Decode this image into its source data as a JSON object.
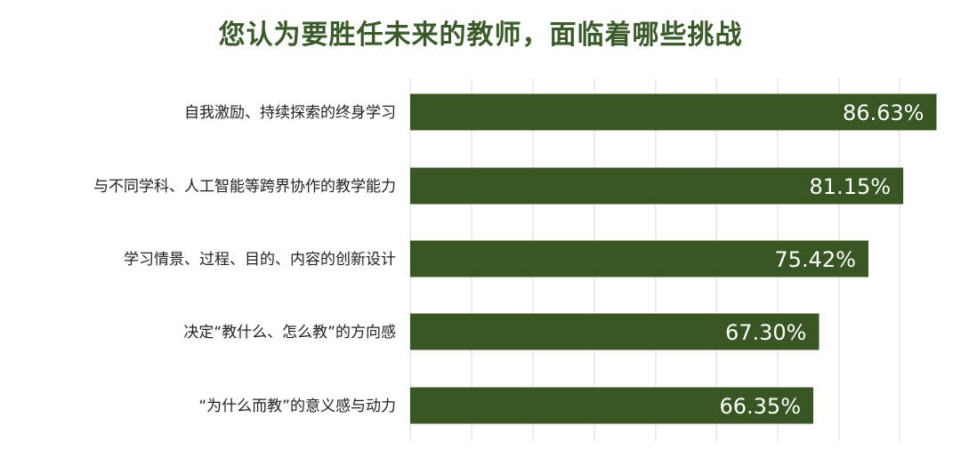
{
  "chart_data": {
    "type": "bar",
    "orientation": "horizontal",
    "title": "您认为要胜任未来的教师，面临着哪些挑战",
    "categories": [
      "自我激励、持续探索的终身学习",
      "与不同学科、人工智能等跨界协作的教学能力",
      "学习情景、过程、目的、内容的创新设计",
      "决定“教什么、怎么教”的方向感",
      "“为什么而教”的意义感与动力"
    ],
    "values": [
      86.63,
      81.15,
      75.42,
      67.3,
      66.35
    ],
    "value_labels": [
      "86.63%",
      "81.15%",
      "75.42%",
      "67.30%",
      "66.35%"
    ],
    "xlim": [
      0,
      87
    ],
    "grid": true,
    "legend": "none",
    "colors": {
      "bar": "#375623",
      "title": "#3a5a2a",
      "label": "#222222",
      "grid": "#d9d9d9",
      "bar_text": "#ffffff"
    }
  }
}
